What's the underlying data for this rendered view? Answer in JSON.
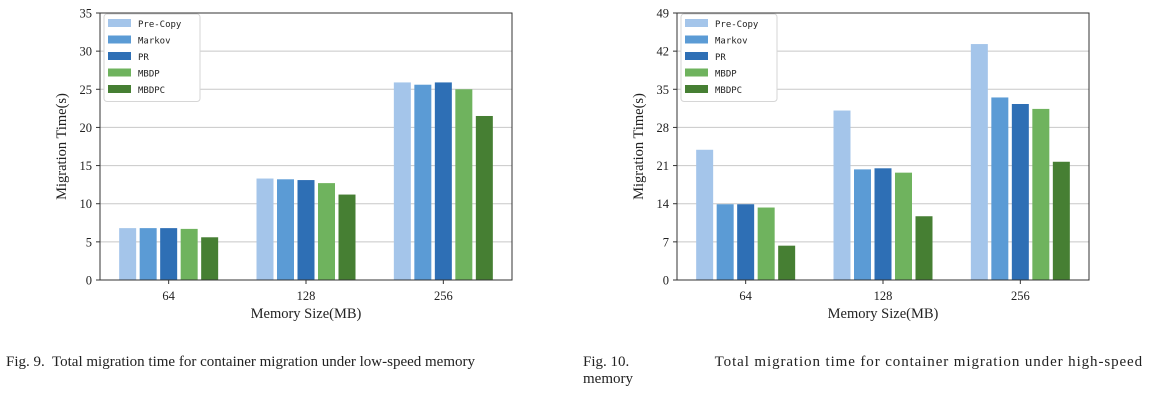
{
  "colors": {
    "Pre-Copy": "#a4c5ea",
    "Markov": "#5b9bd5",
    "PR": "#2e6fb5",
    "MBDP": "#6fb35e",
    "MBDPC": "#467f33",
    "grid": "#c8c8c8",
    "axis": "#333333"
  },
  "figures": [
    {
      "caption_label": "Fig. 9.",
      "caption_text": "Total migration time for container migration under low-speed memory"
    },
    {
      "caption_label": "Fig. 10.",
      "caption_text": "Total migration time for container migration under high-speed",
      "caption_text_cont": "memory"
    }
  ],
  "chart_data": [
    {
      "type": "bar",
      "title": "",
      "xlabel": "Memory Size(MB)",
      "ylabel": "Migration Time(s)",
      "categories": [
        "64",
        "128",
        "256"
      ],
      "ylim": [
        0,
        35
      ],
      "yticks": [
        0,
        5,
        10,
        15,
        20,
        25,
        30,
        35
      ],
      "grid": true,
      "legend": "top-left",
      "series": [
        {
          "name": "Pre-Copy",
          "values": [
            6.8,
            13.3,
            25.9
          ]
        },
        {
          "name": "Markov",
          "values": [
            6.8,
            13.2,
            25.6
          ]
        },
        {
          "name": "PR",
          "values": [
            6.8,
            13.1,
            25.9
          ]
        },
        {
          "name": "MBDP",
          "values": [
            6.7,
            12.7,
            25.0
          ]
        },
        {
          "name": "MBDPC",
          "values": [
            5.6,
            11.2,
            21.5
          ]
        }
      ]
    },
    {
      "type": "bar",
      "title": "",
      "xlabel": "Memory Size(MB)",
      "ylabel": "Migration Time(s)",
      "categories": [
        "64",
        "128",
        "256"
      ],
      "ylim": [
        0,
        49
      ],
      "yticks": [
        0,
        7,
        14,
        21,
        28,
        35,
        42,
        49
      ],
      "grid": true,
      "legend": "top-left",
      "series": [
        {
          "name": "Pre-Copy",
          "values": [
            23.9,
            31.1,
            43.3
          ]
        },
        {
          "name": "Markov",
          "values": [
            13.9,
            20.3,
            33.5
          ]
        },
        {
          "name": "PR",
          "values": [
            13.9,
            20.5,
            32.3
          ]
        },
        {
          "name": "MBDP",
          "values": [
            13.3,
            19.7,
            31.4
          ]
        },
        {
          "name": "MBDPC",
          "values": [
            6.3,
            11.7,
            21.7
          ]
        }
      ]
    }
  ]
}
